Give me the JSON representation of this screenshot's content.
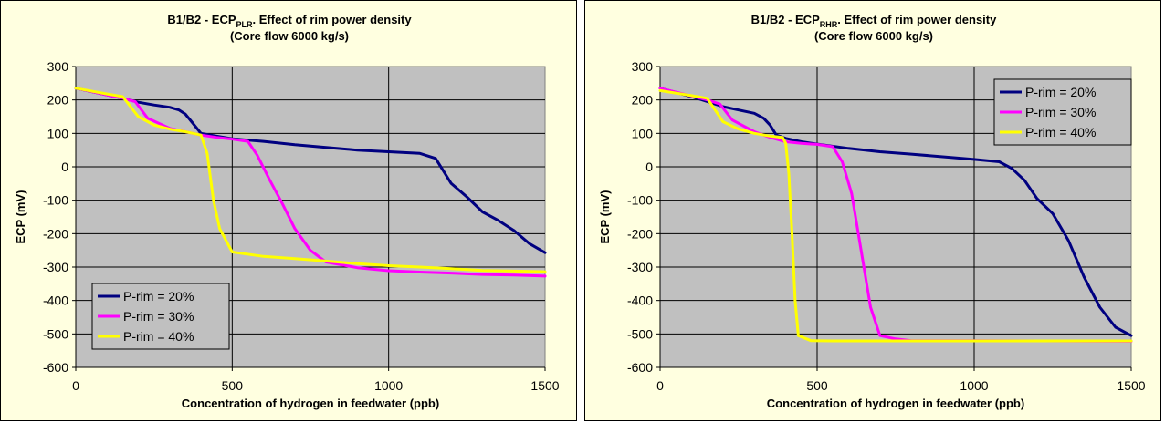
{
  "charts": [
    {
      "title_main": "B1/B2 - ECP",
      "title_sub": "PLR",
      "title_rest": ". Effect of rim power density",
      "title_line2": "(Core flow 6000 kg/s)",
      "xlabel": "Concentration of hydrogen in feedwater (ppb)",
      "ylabel": "ECP (mV)",
      "legend": [
        "P-rim = 20%",
        "P-rim = 30%",
        "P-rim = 40%"
      ]
    },
    {
      "title_main": "B1/B2 - ECP",
      "title_sub": "RHR",
      "title_rest": ". Effect of rim power density",
      "title_line2": "(Core flow 6000 kg/s)",
      "xlabel": "Concentration of hydrogen in feedwater (ppb)",
      "ylabel": "ECP (mV)",
      "legend": [
        "P-rim = 20%",
        "P-rim = 30%",
        "P-rim = 40%"
      ]
    }
  ],
  "chart_data": [
    {
      "type": "line",
      "title": "B1/B2 - ECPPLR. Effect of rim power density (Core flow 6000 kg/s)",
      "xlabel": "Concentration of hydrogen in feedwater (ppb)",
      "ylabel": "ECP (mV)",
      "xlim": [
        0,
        1500
      ],
      "ylim": [
        -600,
        300
      ],
      "x_ticks": [
        0,
        500,
        1000,
        1500
      ],
      "y_ticks": [
        300,
        200,
        100,
        0,
        -100,
        -200,
        -300,
        -400,
        -500,
        -600
      ],
      "grid": true,
      "legend_position": "bottom-left",
      "series": [
        {
          "name": "P-rim = 20%",
          "color": "#000080",
          "points": [
            [
              0,
              235
            ],
            [
              100,
              215
            ],
            [
              150,
              205
            ],
            [
              200,
              193
            ],
            [
              250,
              185
            ],
            [
              300,
              178
            ],
            [
              330,
              170
            ],
            [
              350,
              158
            ],
            [
              370,
              135
            ],
            [
              400,
              100
            ],
            [
              450,
              92
            ],
            [
              500,
              84
            ],
            [
              600,
              76
            ],
            [
              700,
              66
            ],
            [
              800,
              58
            ],
            [
              900,
              50
            ],
            [
              1000,
              45
            ],
            [
              1100,
              40
            ],
            [
              1150,
              25
            ],
            [
              1200,
              -50
            ],
            [
              1250,
              -90
            ],
            [
              1300,
              -135
            ],
            [
              1350,
              -160
            ],
            [
              1400,
              -190
            ],
            [
              1450,
              -230
            ],
            [
              1500,
              -257
            ]
          ]
        },
        {
          "name": "P-rim = 30%",
          "color": "#ff00ff",
          "points": [
            [
              0,
              235
            ],
            [
              100,
              215
            ],
            [
              150,
              205
            ],
            [
              190,
              195
            ],
            [
              230,
              145
            ],
            [
              300,
              115
            ],
            [
              350,
              105
            ],
            [
              400,
              95
            ],
            [
              450,
              88
            ],
            [
              500,
              83
            ],
            [
              550,
              76
            ],
            [
              580,
              35
            ],
            [
              620,
              -40
            ],
            [
              660,
              -110
            ],
            [
              700,
              -185
            ],
            [
              750,
              -250
            ],
            [
              800,
              -285
            ],
            [
              900,
              -302
            ],
            [
              1000,
              -311
            ],
            [
              1100,
              -315
            ],
            [
              1200,
              -318
            ],
            [
              1300,
              -322
            ],
            [
              1400,
              -324
            ],
            [
              1500,
              -327
            ]
          ]
        },
        {
          "name": "P-rim = 40%",
          "color": "#ffff00",
          "points": [
            [
              0,
              235
            ],
            [
              100,
              218
            ],
            [
              150,
              210
            ],
            [
              200,
              150
            ],
            [
              250,
              125
            ],
            [
              300,
              113
            ],
            [
              350,
              105
            ],
            [
              400,
              95
            ],
            [
              420,
              40
            ],
            [
              440,
              -100
            ],
            [
              460,
              -185
            ],
            [
              500,
              -255
            ],
            [
              600,
              -268
            ],
            [
              700,
              -275
            ],
            [
              800,
              -282
            ],
            [
              900,
              -290
            ],
            [
              1000,
              -296
            ],
            [
              1100,
              -300
            ],
            [
              1200,
              -305
            ],
            [
              1300,
              -310
            ],
            [
              1400,
              -312
            ],
            [
              1500,
              -314
            ]
          ]
        }
      ]
    },
    {
      "type": "line",
      "title": "B1/B2 - ECPRHR. Effect of rim power density (Core flow 6000 kg/s)",
      "xlabel": "Concentration of hydrogen in feedwater (ppb)",
      "ylabel": "ECP (mV)",
      "xlim": [
        0,
        1500
      ],
      "ylim": [
        -600,
        300
      ],
      "x_ticks": [
        0,
        500,
        1000,
        1500
      ],
      "y_ticks": [
        300,
        200,
        100,
        0,
        -100,
        -200,
        -300,
        -400,
        -500,
        -600
      ],
      "grid": true,
      "legend_position": "top-right",
      "series": [
        {
          "name": "P-rim = 20%",
          "color": "#000080",
          "points": [
            [
              0,
              235
            ],
            [
              100,
              210
            ],
            [
              150,
              195
            ],
            [
              200,
              180
            ],
            [
              250,
              170
            ],
            [
              300,
              160
            ],
            [
              330,
              145
            ],
            [
              350,
              125
            ],
            [
              370,
              95
            ],
            [
              400,
              85
            ],
            [
              450,
              75
            ],
            [
              500,
              68
            ],
            [
              600,
              55
            ],
            [
              700,
              45
            ],
            [
              800,
              38
            ],
            [
              900,
              30
            ],
            [
              1000,
              22
            ],
            [
              1080,
              15
            ],
            [
              1120,
              -5
            ],
            [
              1160,
              -40
            ],
            [
              1200,
              -95
            ],
            [
              1250,
              -140
            ],
            [
              1300,
              -220
            ],
            [
              1350,
              -330
            ],
            [
              1400,
              -420
            ],
            [
              1450,
              -480
            ],
            [
              1500,
              -505
            ]
          ]
        },
        {
          "name": "P-rim = 30%",
          "color": "#ff00ff",
          "points": [
            [
              0,
              235
            ],
            [
              100,
              212
            ],
            [
              150,
              200
            ],
            [
              190,
              188
            ],
            [
              230,
              140
            ],
            [
              300,
              105
            ],
            [
              350,
              88
            ],
            [
              400,
              75
            ],
            [
              450,
              70
            ],
            [
              500,
              67
            ],
            [
              550,
              60
            ],
            [
              580,
              15
            ],
            [
              610,
              -80
            ],
            [
              640,
              -250
            ],
            [
              670,
              -420
            ],
            [
              700,
              -505
            ],
            [
              750,
              -515
            ],
            [
              800,
              -520
            ],
            [
              1000,
              -520
            ],
            [
              1200,
              -521
            ],
            [
              1500,
              -522
            ]
          ]
        },
        {
          "name": "P-rim = 40%",
          "color": "#ffff00",
          "points": [
            [
              0,
              228
            ],
            [
              100,
              213
            ],
            [
              150,
              205
            ],
            [
              200,
              135
            ],
            [
              250,
              113
            ],
            [
              300,
              100
            ],
            [
              350,
              92
            ],
            [
              390,
              88
            ],
            [
              400,
              70
            ],
            [
              410,
              -20
            ],
            [
              420,
              -200
            ],
            [
              430,
              -400
            ],
            [
              440,
              -505
            ],
            [
              480,
              -520
            ],
            [
              550,
              -521
            ],
            [
              800,
              -521
            ],
            [
              1500,
              -521
            ]
          ]
        }
      ]
    }
  ]
}
